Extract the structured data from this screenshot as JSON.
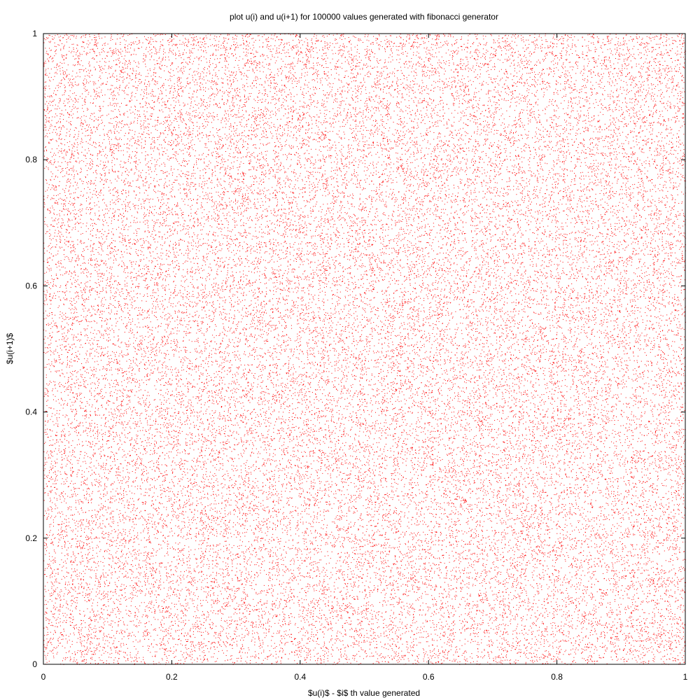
{
  "chart_data": {
    "type": "scatter",
    "title": "plot u(i) and u(i+1) for 100000 values generated with fibonacci generator",
    "xlabel": "$u(i)$ - $i$ th value generated",
    "ylabel": "$u(i+1)$",
    "xlim": [
      0,
      1
    ],
    "ylim": [
      0,
      1
    ],
    "xticks": [
      0,
      0.2,
      0.4,
      0.6,
      0.8,
      1
    ],
    "yticks": [
      0,
      0.2,
      0.4,
      0.6,
      0.8,
      1
    ],
    "x_tick_labels": [
      "0",
      "0.2",
      "0.4",
      "0.6",
      "0.8",
      "1"
    ],
    "y_tick_labels": [
      "0",
      "0.2",
      "0.4",
      "0.6",
      "0.8",
      "1"
    ],
    "grid": false,
    "legend": "none",
    "point_count": 100000,
    "distribution": "uniform over the unit square [0,1] x [0,1]",
    "marker_color": "#ff0000",
    "series": [
      {
        "color": "#ff0000",
        "sample_points": [
          [
            0.8125,
            0.3021
          ],
          [
            0.1147,
            0.9283
          ],
          [
            0.5566,
            0.0419
          ],
          [
            0.339,
            0.7112
          ],
          [
            0.9724,
            0.4508
          ],
          [
            0.2018,
            0.1836
          ],
          [
            0.6471,
            0.884
          ],
          [
            0.0756,
            0.5967
          ],
          [
            0.4213,
            0.2645
          ],
          [
            0.8901,
            0.7731
          ],
          [
            0.2749,
            0.0874
          ],
          [
            0.7062,
            0.3598
          ],
          [
            0.1684,
            0.6405
          ],
          [
            0.5319,
            0.9587
          ],
          [
            0.945,
            0.1257
          ],
          [
            0.3857,
            0.4979
          ]
        ]
      }
    ]
  }
}
